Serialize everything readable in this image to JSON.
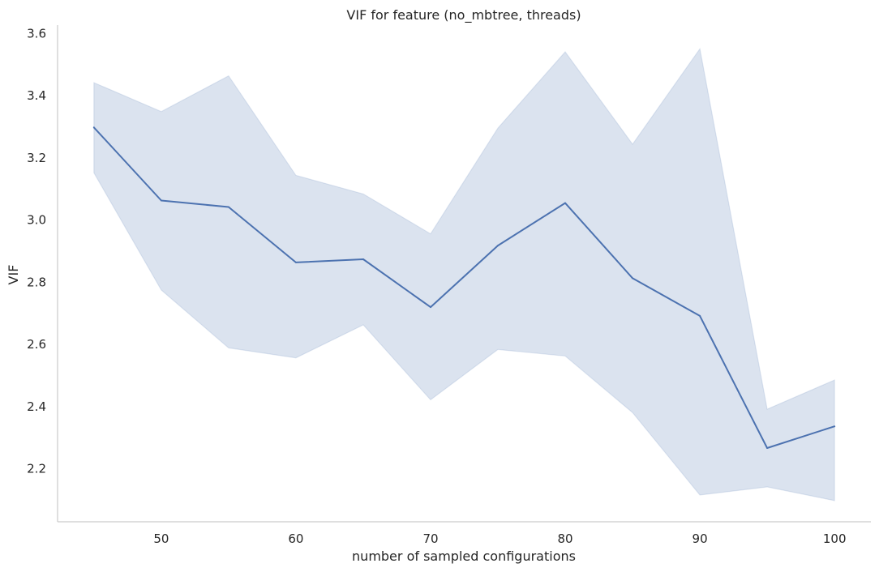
{
  "chart_data": {
    "type": "line",
    "title": "VIF for feature (no_mbtree, threads)",
    "xlabel": "number of sampled configurations",
    "ylabel": "VIF",
    "x_ticks": [
      50,
      60,
      70,
      80,
      90,
      100
    ],
    "y_ticks": [
      "2.2",
      "2.4",
      "2.6",
      "2.8",
      "3.0",
      "3.2",
      "3.4",
      "3.6"
    ],
    "xlim": [
      42.3,
      102.7
    ],
    "ylim": [
      2.03,
      3.627
    ],
    "grid": false,
    "series": [
      {
        "x": [
          45,
          50,
          55,
          60,
          65,
          70,
          75,
          80,
          85,
          90,
          95,
          100
        ],
        "values": [
          3.298,
          3.063,
          3.042,
          2.864,
          2.874,
          2.72,
          2.918,
          3.055,
          2.813,
          2.692,
          2.267,
          2.337
        ],
        "ci_upper": [
          3.442,
          3.349,
          3.464,
          3.144,
          3.084,
          2.956,
          3.296,
          3.541,
          3.244,
          3.551,
          2.392,
          2.486
        ],
        "ci_lower": [
          3.152,
          2.775,
          2.589,
          2.557,
          2.663,
          2.422,
          2.584,
          2.563,
          2.381,
          2.116,
          2.142,
          2.098
        ],
        "color": "#4c72b0",
        "band_color": "#4c72b0"
      }
    ]
  }
}
